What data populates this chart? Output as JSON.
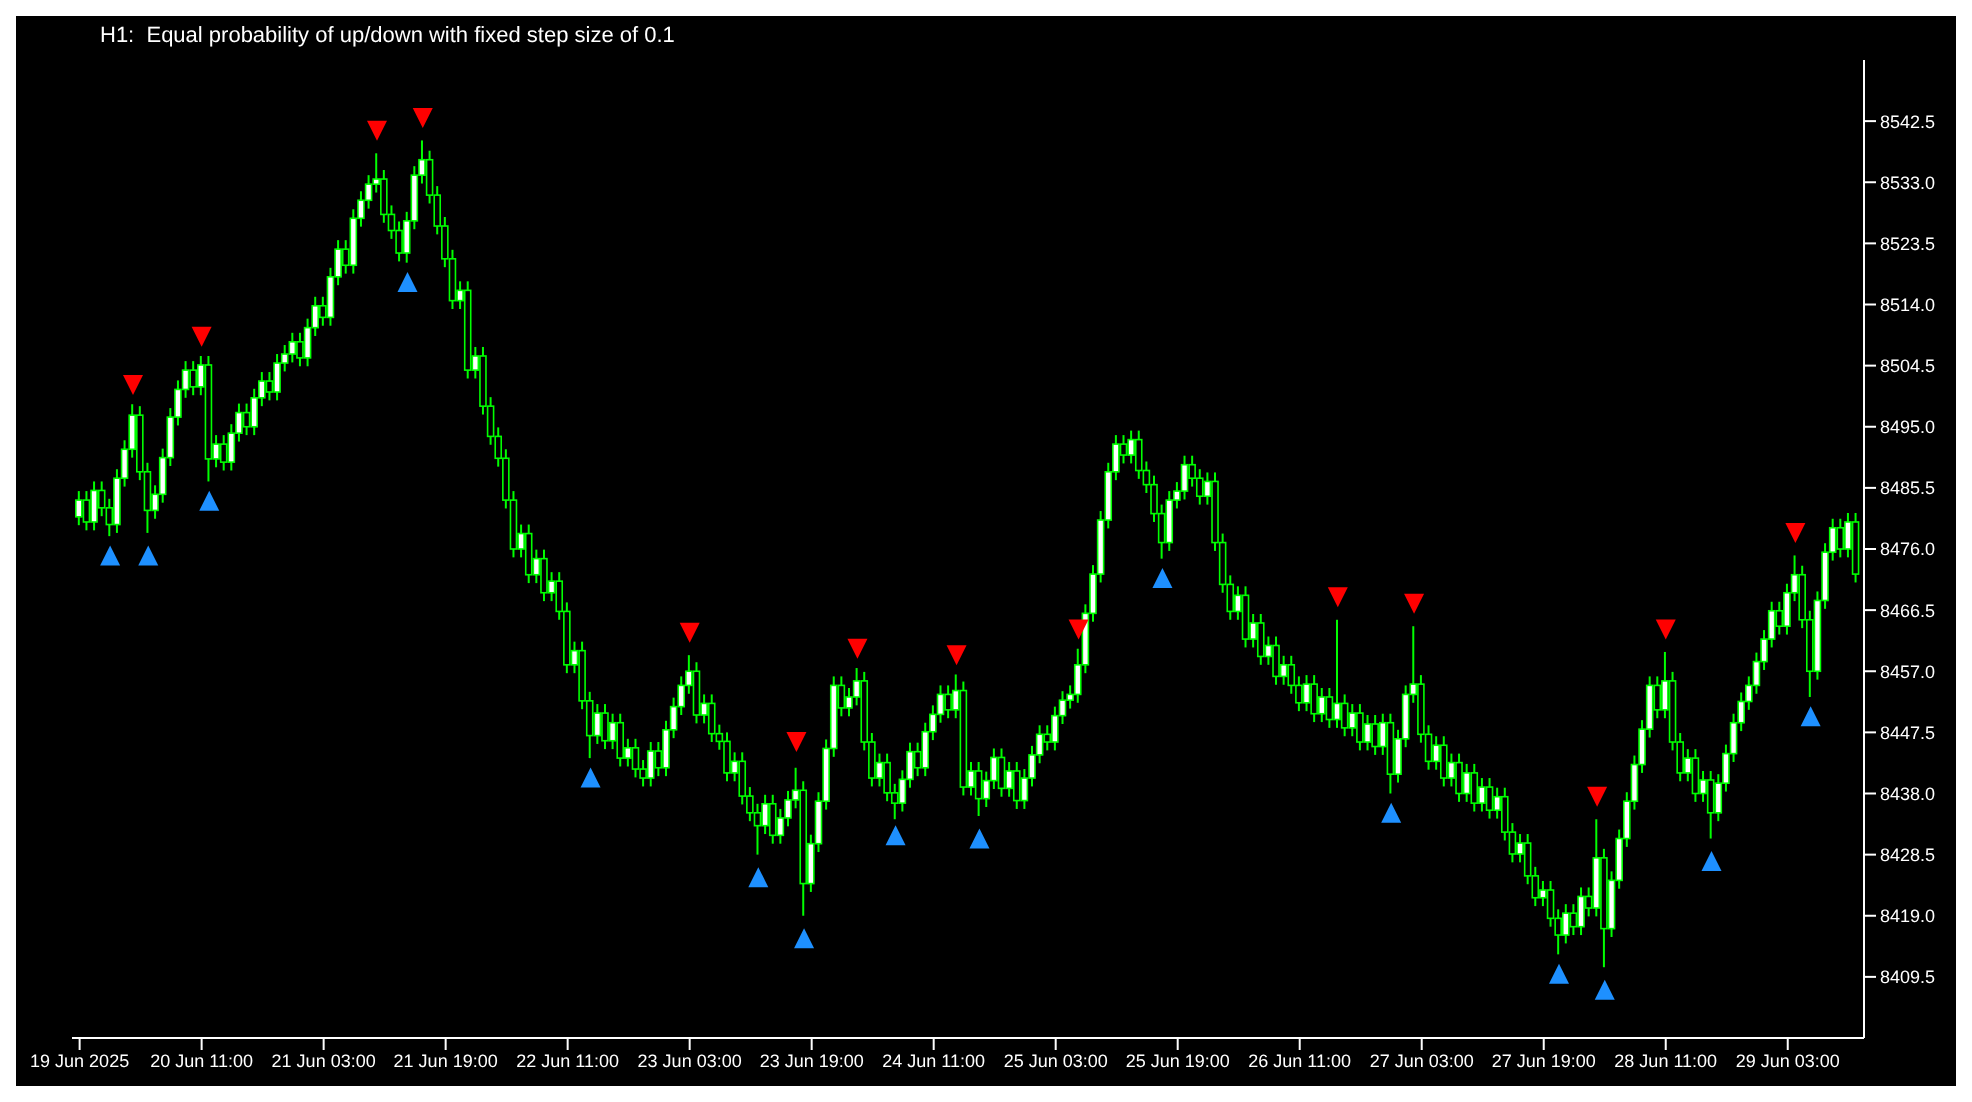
{
  "chart_data": {
    "type": "candlestick",
    "title": "H1:  Equal probability of up/down with fixed step size of 0.1",
    "color": "#00ff00",
    "x": [
      "2025-06-19T19:00",
      "2025-06-19T20:00",
      "2025-06-19T21:00",
      "2025-06-19T22:00",
      "2025-06-19T23:00",
      "2025-06-20T00:00",
      "2025-06-20T01:00",
      "2025-06-20T02:00",
      "2025-06-20T03:00",
      "2025-06-20T04:00",
      "2025-06-20T05:00",
      "2025-06-20T06:00",
      "2025-06-20T07:00",
      "2025-06-20T08:00",
      "2025-06-20T09:00",
      "2025-06-20T10:00",
      "2025-06-20T11:00",
      "2025-06-20T12:00",
      "2025-06-20T13:00",
      "2025-06-20T14:00",
      "2025-06-20T15:00",
      "2025-06-20T16:00",
      "2025-06-20T17:00",
      "2025-06-20T18:00",
      "2025-06-20T19:00",
      "2025-06-20T20:00",
      "2025-06-20T21:00",
      "2025-06-20T22:00",
      "2025-06-20T23:00",
      "2025-06-21T00:00",
      "2025-06-21T01:00",
      "2025-06-21T02:00",
      "2025-06-21T03:00",
      "2025-06-21T04:00",
      "2025-06-21T05:00",
      "2025-06-21T06:00",
      "2025-06-21T07:00",
      "2025-06-21T08:00",
      "2025-06-21T09:00",
      "2025-06-21T10:00",
      "2025-06-21T11:00",
      "2025-06-21T12:00",
      "2025-06-21T13:00",
      "2025-06-21T14:00",
      "2025-06-21T15:00",
      "2025-06-21T16:00",
      "2025-06-21T17:00",
      "2025-06-21T18:00",
      "2025-06-21T19:00",
      "2025-06-21T20:00",
      "2025-06-21T21:00",
      "2025-06-21T22:00",
      "2025-06-21T23:00",
      "2025-06-22T00:00",
      "2025-06-22T01:00",
      "2025-06-22T02:00",
      "2025-06-22T03:00",
      "2025-06-22T04:00",
      "2025-06-22T05:00",
      "2025-06-22T06:00",
      "2025-06-22T07:00",
      "2025-06-22T08:00",
      "2025-06-22T09:00",
      "2025-06-22T10:00",
      "2025-06-22T11:00",
      "2025-06-22T12:00",
      "2025-06-22T13:00",
      "2025-06-22T14:00",
      "2025-06-22T15:00",
      "2025-06-22T16:00",
      "2025-06-22T17:00",
      "2025-06-22T18:00",
      "2025-06-22T19:00",
      "2025-06-22T20:00",
      "2025-06-22T21:00",
      "2025-06-22T22:00",
      "2025-06-22T23:00",
      "2025-06-23T00:00",
      "2025-06-23T01:00",
      "2025-06-23T02:00",
      "2025-06-23T03:00",
      "2025-06-23T04:00",
      "2025-06-23T05:00",
      "2025-06-23T06:00",
      "2025-06-23T07:00",
      "2025-06-23T08:00",
      "2025-06-23T09:00",
      "2025-06-23T10:00",
      "2025-06-23T11:00",
      "2025-06-23T12:00",
      "2025-06-23T13:00",
      "2025-06-23T14:00",
      "2025-06-23T15:00",
      "2025-06-23T16:00",
      "2025-06-23T17:00",
      "2025-06-23T18:00",
      "2025-06-23T19:00",
      "2025-06-23T20:00",
      "2025-06-23T21:00",
      "2025-06-23T22:00",
      "2025-06-23T23:00",
      "2025-06-24T00:00",
      "2025-06-24T01:00",
      "2025-06-24T02:00",
      "2025-06-24T03:00",
      "2025-06-24T04:00",
      "2025-06-24T05:00",
      "2025-06-24T06:00",
      "2025-06-24T07:00",
      "2025-06-24T08:00",
      "2025-06-24T09:00",
      "2025-06-24T10:00",
      "2025-06-24T11:00",
      "2025-06-24T12:00",
      "2025-06-24T13:00",
      "2025-06-24T14:00",
      "2025-06-24T15:00",
      "2025-06-24T16:00",
      "2025-06-24T17:00",
      "2025-06-24T18:00",
      "2025-06-24T19:00",
      "2025-06-24T20:00",
      "2025-06-24T21:00",
      "2025-06-24T22:00",
      "2025-06-24T23:00",
      "2025-06-25T00:00",
      "2025-06-25T01:00",
      "2025-06-25T02:00",
      "2025-06-25T03:00",
      "2025-06-25T04:00",
      "2025-06-25T05:00",
      "2025-06-25T06:00",
      "2025-06-25T07:00",
      "2025-06-25T08:00",
      "2025-06-25T09:00",
      "2025-06-25T10:00",
      "2025-06-25T11:00",
      "2025-06-25T12:00",
      "2025-06-25T13:00",
      "2025-06-25T14:00",
      "2025-06-25T15:00",
      "2025-06-25T16:00",
      "2025-06-25T17:00",
      "2025-06-25T18:00",
      "2025-06-25T19:00",
      "2025-06-25T20:00",
      "2025-06-25T21:00",
      "2025-06-25T22:00",
      "2025-06-25T23:00",
      "2025-06-26T00:00",
      "2025-06-26T01:00",
      "2025-06-26T02:00",
      "2025-06-26T03:00",
      "2025-06-26T04:00",
      "2025-06-26T05:00",
      "2025-06-26T06:00",
      "2025-06-26T07:00",
      "2025-06-26T08:00",
      "2025-06-26T09:00",
      "2025-06-26T10:00",
      "2025-06-26T11:00",
      "2025-06-26T12:00",
      "2025-06-26T13:00",
      "2025-06-26T14:00",
      "2025-06-26T15:00",
      "2025-06-26T16:00",
      "2025-06-26T17:00",
      "2025-06-26T18:00",
      "2025-06-26T19:00",
      "2025-06-26T20:00",
      "2025-06-26T21:00",
      "2025-06-26T22:00",
      "2025-06-26T23:00",
      "2025-06-27T00:00",
      "2025-06-27T01:00",
      "2025-06-27T02:00",
      "2025-06-27T03:00",
      "2025-06-27T04:00",
      "2025-06-27T05:00",
      "2025-06-27T06:00",
      "2025-06-27T07:00",
      "2025-06-27T08:00",
      "2025-06-27T09:00",
      "2025-06-27T10:00",
      "2025-06-27T11:00",
      "2025-06-27T12:00",
      "2025-06-27T13:00",
      "2025-06-27T14:00",
      "2025-06-27T15:00",
      "2025-06-27T16:00",
      "2025-06-27T17:00",
      "2025-06-27T18:00",
      "2025-06-27T19:00",
      "2025-06-27T20:00",
      "2025-06-27T21:00",
      "2025-06-27T22:00",
      "2025-06-27T23:00",
      "2025-06-28T00:00",
      "2025-06-28T01:00",
      "2025-06-28T02:00",
      "2025-06-28T03:00",
      "2025-06-28T04:00",
      "2025-06-28T05:00",
      "2025-06-28T06:00",
      "2025-06-28T07:00",
      "2025-06-28T08:00",
      "2025-06-28T09:00",
      "2025-06-28T10:00",
      "2025-06-28T11:00",
      "2025-06-28T12:00",
      "2025-06-28T13:00",
      "2025-06-28T14:00",
      "2025-06-28T15:00",
      "2025-06-28T16:00",
      "2025-06-28T17:00",
      "2025-06-28T18:00",
      "2025-06-28T19:00",
      "2025-06-28T20:00",
      "2025-06-28T21:00",
      "2025-06-28T22:00",
      "2025-06-28T23:00",
      "2025-06-29T00:00",
      "2025-06-29T01:00",
      "2025-06-29T02:00",
      "2025-06-29T03:00",
      "2025-06-29T04:00",
      "2025-06-29T05:00",
      "2025-06-29T06:00",
      "2025-06-29T07:00",
      "2025-06-29T08:00",
      "2025-06-29T09:00",
      "2025-06-29T10:00",
      "2025-06-29T11:00",
      "2025-06-29T12:00"
    ],
    "ohlc": [
      [
        8481.0,
        8485.0,
        8479.7,
        8483.6
      ],
      [
        8483.6,
        8485.0,
        8478.9,
        8480.2
      ],
      [
        8480.2,
        8486.5,
        8478.9,
        8485.1
      ],
      [
        8485.1,
        8486.5,
        8481.1,
        8482.4
      ],
      [
        8482.4,
        8483.8,
        8478.0,
        8479.8
      ],
      [
        8479.8,
        8488.4,
        8478.5,
        8487.0
      ],
      [
        8487.0,
        8492.9,
        8485.7,
        8491.5
      ],
      [
        8491.5,
        8498.5,
        8490.2,
        8496.8
      ],
      [
        8496.8,
        8498.2,
        8486.7,
        8488.0
      ],
      [
        8488.0,
        8489.4,
        8478.5,
        8482.0
      ],
      [
        8482.0,
        8485.9,
        8480.7,
        8484.5
      ],
      [
        8484.5,
        8491.6,
        8483.2,
        8490.2
      ],
      [
        8490.2,
        8497.9,
        8488.9,
        8496.5
      ],
      [
        8496.5,
        8502.2,
        8495.2,
        8500.8
      ],
      [
        8500.8,
        8505.2,
        8499.5,
        8503.8
      ],
      [
        8503.8,
        8505.2,
        8499.9,
        8501.2
      ],
      [
        8501.2,
        8506.0,
        8499.9,
        8504.6
      ],
      [
        8504.6,
        8506.0,
        8486.5,
        8490.0
      ],
      [
        8490.0,
        8493.7,
        8488.7,
        8492.3
      ],
      [
        8492.3,
        8493.7,
        8488.2,
        8489.5
      ],
      [
        8489.5,
        8495.4,
        8488.2,
        8494.0
      ],
      [
        8494.0,
        8498.6,
        8492.7,
        8497.2
      ],
      [
        8497.2,
        8498.6,
        8493.7,
        8495.0
      ],
      [
        8495.0,
        8500.9,
        8493.7,
        8499.5
      ],
      [
        8499.5,
        8503.5,
        8498.2,
        8502.1
      ],
      [
        8502.1,
        8503.5,
        8499.1,
        8500.4
      ],
      [
        8500.4,
        8506.3,
        8499.1,
        8504.9
      ],
      [
        8504.9,
        8507.7,
        8503.6,
        8506.3
      ],
      [
        8506.3,
        8509.6,
        8505.0,
        8508.2
      ],
      [
        8508.2,
        8509.6,
        8504.4,
        8505.7
      ],
      [
        8505.7,
        8511.8,
        8504.4,
        8510.4
      ],
      [
        8510.4,
        8515.2,
        8509.1,
        8513.8
      ],
      [
        8513.8,
        8515.2,
        8510.7,
        8512.0
      ],
      [
        8512.0,
        8519.7,
        8510.7,
        8518.3
      ],
      [
        8518.3,
        8524.0,
        8517.0,
        8522.6
      ],
      [
        8522.6,
        8524.0,
        8518.8,
        8520.1
      ],
      [
        8520.1,
        8528.8,
        8518.8,
        8527.4
      ],
      [
        8527.4,
        8531.6,
        8526.1,
        8530.2
      ],
      [
        8530.2,
        8534.1,
        8528.9,
        8532.7
      ],
      [
        8532.7,
        8537.5,
        8531.4,
        8533.5
      ],
      [
        8533.5,
        8534.9,
        8526.7,
        8528.0
      ],
      [
        8528.0,
        8529.4,
        8524.2,
        8525.5
      ],
      [
        8525.5,
        8526.9,
        8520.7,
        8522.0
      ],
      [
        8522.0,
        8528.4,
        8520.5,
        8527.0
      ],
      [
        8527.0,
        8535.5,
        8525.7,
        8534.1
      ],
      [
        8534.1,
        8539.5,
        8532.8,
        8536.5
      ],
      [
        8536.5,
        8537.9,
        8529.7,
        8531.0
      ],
      [
        8531.0,
        8532.4,
        8524.9,
        8526.2
      ],
      [
        8526.2,
        8527.6,
        8519.8,
        8521.1
      ],
      [
        8521.1,
        8522.5,
        8513.3,
        8514.6
      ],
      [
        8514.6,
        8517.6,
        8513.3,
        8516.2
      ],
      [
        8516.2,
        8517.6,
        8502.5,
        8503.8
      ],
      [
        8503.8,
        8507.4,
        8502.5,
        8506.0
      ],
      [
        8506.0,
        8507.4,
        8496.9,
        8498.2
      ],
      [
        8498.2,
        8499.6,
        8492.2,
        8493.5
      ],
      [
        8493.5,
        8494.9,
        8488.8,
        8490.1
      ],
      [
        8490.1,
        8491.5,
        8482.3,
        8483.6
      ],
      [
        8483.6,
        8485.0,
        8474.7,
        8476.0
      ],
      [
        8476.0,
        8479.8,
        8474.7,
        8478.4
      ],
      [
        8478.4,
        8479.8,
        8470.7,
        8472.0
      ],
      [
        8472.0,
        8475.9,
        8470.7,
        8474.5
      ],
      [
        8474.5,
        8475.9,
        8467.9,
        8469.2
      ],
      [
        8469.2,
        8472.4,
        8467.9,
        8471.0
      ],
      [
        8471.0,
        8472.4,
        8465.0,
        8466.3
      ],
      [
        8466.3,
        8467.7,
        8456.7,
        8458.0
      ],
      [
        8458.0,
        8461.6,
        8456.7,
        8460.2
      ],
      [
        8460.2,
        8461.6,
        8451.1,
        8452.4
      ],
      [
        8452.4,
        8453.8,
        8443.5,
        8447.0
      ],
      [
        8447.0,
        8451.9,
        8445.7,
        8450.5
      ],
      [
        8450.5,
        8451.9,
        8444.9,
        8446.2
      ],
      [
        8446.2,
        8450.4,
        8444.9,
        8449.0
      ],
      [
        8449.0,
        8450.4,
        8442.2,
        8443.5
      ],
      [
        8443.5,
        8446.5,
        8442.2,
        8445.1
      ],
      [
        8445.1,
        8446.5,
        8440.5,
        8441.8
      ],
      [
        8441.8,
        8443.2,
        8439.1,
        8440.4
      ],
      [
        8440.4,
        8446.0,
        8439.1,
        8444.6
      ],
      [
        8444.6,
        8446.0,
        8440.7,
        8442.0
      ],
      [
        8442.0,
        8449.3,
        8440.7,
        8447.9
      ],
      [
        8447.9,
        8452.9,
        8446.6,
        8451.5
      ],
      [
        8451.5,
        8456.2,
        8450.2,
        8454.8
      ],
      [
        8454.8,
        8459.5,
        8453.5,
        8457.0
      ],
      [
        8457.0,
        8458.4,
        8448.9,
        8450.2
      ],
      [
        8450.2,
        8453.4,
        8448.9,
        8452.0
      ],
      [
        8452.0,
        8453.4,
        8446.0,
        8447.3
      ],
      [
        8447.3,
        8448.7,
        8444.8,
        8446.1
      ],
      [
        8446.1,
        8447.5,
        8439.9,
        8441.2
      ],
      [
        8441.2,
        8444.4,
        8439.9,
        8443.0
      ],
      [
        8443.0,
        8444.4,
        8436.3,
        8437.6
      ],
      [
        8437.6,
        8439.0,
        8433.7,
        8435.0
      ],
      [
        8435.0,
        8436.4,
        8428.5,
        8433.0
      ],
      [
        8433.0,
        8437.8,
        8431.7,
        8436.4
      ],
      [
        8436.4,
        8437.8,
        8430.2,
        8431.5
      ],
      [
        8431.5,
        8435.6,
        8430.2,
        8434.2
      ],
      [
        8434.2,
        8438.4,
        8432.9,
        8437.0
      ],
      [
        8437.0,
        8442.0,
        8435.7,
        8438.5
      ],
      [
        8438.5,
        8439.9,
        8419.0,
        8424.0
      ],
      [
        8424.0,
        8431.6,
        8422.7,
        8430.2
      ],
      [
        8430.2,
        8438.2,
        8428.9,
        8436.8
      ],
      [
        8436.8,
        8446.4,
        8435.5,
        8445.0
      ],
      [
        8445.0,
        8456.2,
        8443.7,
        8454.8
      ],
      [
        8454.8,
        8456.2,
        8450.0,
        8451.3
      ],
      [
        8451.3,
        8454.4,
        8450.0,
        8453.0
      ],
      [
        8453.0,
        8457.5,
        8451.7,
        8455.5
      ],
      [
        8455.5,
        8456.9,
        8444.7,
        8446.0
      ],
      [
        8446.0,
        8447.4,
        8439.1,
        8440.4
      ],
      [
        8440.4,
        8444.2,
        8439.1,
        8442.8
      ],
      [
        8442.8,
        8444.2,
        8436.8,
        8438.1
      ],
      [
        8438.1,
        8439.5,
        8434.0,
        8436.5
      ],
      [
        8436.5,
        8441.6,
        8435.2,
        8440.2
      ],
      [
        8440.2,
        8445.9,
        8438.9,
        8444.5
      ],
      [
        8444.5,
        8445.9,
        8440.7,
        8442.0
      ],
      [
        8442.0,
        8449.0,
        8440.7,
        8447.6
      ],
      [
        8447.6,
        8451.7,
        8446.3,
        8450.3
      ],
      [
        8450.3,
        8454.8,
        8449.0,
        8453.4
      ],
      [
        8453.4,
        8454.8,
        8449.7,
        8451.0
      ],
      [
        8451.0,
        8456.5,
        8449.7,
        8454.0
      ],
      [
        8454.0,
        8455.4,
        8437.7,
        8439.0
      ],
      [
        8439.0,
        8442.9,
        8437.7,
        8441.5
      ],
      [
        8441.5,
        8442.9,
        8434.5,
        8437.2
      ],
      [
        8437.2,
        8441.4,
        8435.9,
        8440.0
      ],
      [
        8440.0,
        8445.0,
        8438.7,
        8443.6
      ],
      [
        8443.6,
        8445.0,
        8437.5,
        8438.8
      ],
      [
        8438.8,
        8442.9,
        8437.5,
        8441.5
      ],
      [
        8441.5,
        8442.9,
        8435.6,
        8436.9
      ],
      [
        8436.9,
        8441.8,
        8435.6,
        8440.4
      ],
      [
        8440.4,
        8445.4,
        8439.1,
        8444.0
      ],
      [
        8444.0,
        8448.6,
        8442.7,
        8447.2
      ],
      [
        8447.2,
        8448.6,
        8444.7,
        8446.0
      ],
      [
        8446.0,
        8451.5,
        8444.7,
        8450.1
      ],
      [
        8450.1,
        8453.9,
        8448.8,
        8452.5
      ],
      [
        8452.5,
        8454.8,
        8451.2,
        8453.4
      ],
      [
        8453.4,
        8460.5,
        8452.1,
        8458.0
      ],
      [
        8458.0,
        8467.4,
        8456.7,
        8466.0
      ],
      [
        8466.0,
        8473.5,
        8464.7,
        8472.1
      ],
      [
        8472.1,
        8481.9,
        8470.8,
        8480.5
      ],
      [
        8480.5,
        8489.4,
        8479.2,
        8488.0
      ],
      [
        8488.0,
        8493.7,
        8486.7,
        8492.3
      ],
      [
        8492.3,
        8493.7,
        8489.3,
        8490.6
      ],
      [
        8490.6,
        8494.4,
        8489.3,
        8493.0
      ],
      [
        8493.0,
        8494.4,
        8486.9,
        8488.2
      ],
      [
        8488.2,
        8489.6,
        8484.7,
        8486.0
      ],
      [
        8486.0,
        8487.4,
        8480.2,
        8481.5
      ],
      [
        8481.5,
        8482.9,
        8474.5,
        8477.0
      ],
      [
        8477.0,
        8485.0,
        8475.7,
        8483.6
      ],
      [
        8483.6,
        8486.4,
        8482.3,
        8485.0
      ],
      [
        8485.0,
        8490.5,
        8483.7,
        8489.1
      ],
      [
        8489.1,
        8490.5,
        8485.7,
        8487.0
      ],
      [
        8487.0,
        8488.4,
        8482.9,
        8484.2
      ],
      [
        8484.2,
        8487.9,
        8482.9,
        8486.5
      ],
      [
        8486.5,
        8487.9,
        8475.7,
        8477.0
      ],
      [
        8477.0,
        8478.4,
        8469.2,
        8470.5
      ],
      [
        8470.5,
        8471.9,
        8465.0,
        8466.3
      ],
      [
        8466.3,
        8470.2,
        8465.0,
        8468.8
      ],
      [
        8468.8,
        8470.2,
        8460.7,
        8462.0
      ],
      [
        8462.0,
        8465.9,
        8460.7,
        8464.5
      ],
      [
        8464.5,
        8465.9,
        8458.0,
        8459.3
      ],
      [
        8459.3,
        8462.4,
        8458.0,
        8461.0
      ],
      [
        8461.0,
        8462.4,
        8454.9,
        8456.2
      ],
      [
        8456.2,
        8459.4,
        8454.9,
        8458.0
      ],
      [
        8458.0,
        8459.4,
        8453.5,
        8454.8
      ],
      [
        8454.8,
        8456.2,
        8450.8,
        8452.1
      ],
      [
        8452.1,
        8456.4,
        8450.8,
        8455.0
      ],
      [
        8455.0,
        8456.4,
        8449.1,
        8450.4
      ],
      [
        8450.4,
        8454.4,
        8449.1,
        8453.0
      ],
      [
        8453.0,
        8454.4,
        8448.2,
        8449.5
      ],
      [
        8449.5,
        8465.0,
        8448.2,
        8452.0
      ],
      [
        8452.0,
        8453.4,
        8446.9,
        8448.2
      ],
      [
        8448.2,
        8451.9,
        8446.9,
        8450.5
      ],
      [
        8450.5,
        8451.9,
        8444.7,
        8446.0
      ],
      [
        8446.0,
        8450.2,
        8444.7,
        8448.8
      ],
      [
        8448.8,
        8450.2,
        8444.0,
        8445.3
      ],
      [
        8445.3,
        8450.4,
        8444.0,
        8449.0
      ],
      [
        8449.0,
        8450.4,
        8438.0,
        8441.0
      ],
      [
        8441.0,
        8447.9,
        8439.7,
        8446.5
      ],
      [
        8446.5,
        8454.8,
        8445.2,
        8453.4
      ],
      [
        8453.4,
        8464.0,
        8452.1,
        8455.0
      ],
      [
        8455.0,
        8456.4,
        8445.9,
        8447.2
      ],
      [
        8447.2,
        8448.6,
        8441.7,
        8443.0
      ],
      [
        8443.0,
        8446.9,
        8441.7,
        8445.5
      ],
      [
        8445.5,
        8446.9,
        8439.1,
        8440.4
      ],
      [
        8440.4,
        8444.2,
        8439.1,
        8442.8
      ],
      [
        8442.8,
        8444.2,
        8436.7,
        8438.0
      ],
      [
        8438.0,
        8442.6,
        8436.7,
        8441.2
      ],
      [
        8441.2,
        8442.6,
        8435.2,
        8436.5
      ],
      [
        8436.5,
        8440.4,
        8435.2,
        8439.0
      ],
      [
        8439.0,
        8440.4,
        8434.1,
        8435.4
      ],
      [
        8435.4,
        8438.9,
        8434.1,
        8437.5
      ],
      [
        8437.5,
        8438.9,
        8430.7,
        8432.0
      ],
      [
        8432.0,
        8433.4,
        8427.3,
        8428.6
      ],
      [
        8428.6,
        8431.7,
        8427.3,
        8430.3
      ],
      [
        8430.3,
        8431.7,
        8423.9,
        8425.2
      ],
      [
        8425.2,
        8426.6,
        8420.5,
        8421.8
      ],
      [
        8421.8,
        8424.4,
        8420.5,
        8423.0
      ],
      [
        8423.0,
        8424.4,
        8417.3,
        8418.6
      ],
      [
        8418.6,
        8420.0,
        8413.0,
        8416.0
      ],
      [
        8416.0,
        8420.8,
        8414.7,
        8419.4
      ],
      [
        8419.4,
        8420.8,
        8416.0,
        8417.3
      ],
      [
        8417.3,
        8423.4,
        8416.0,
        8422.0
      ],
      [
        8422.0,
        8423.4,
        8418.9,
        8420.2
      ],
      [
        8420.2,
        8434.0,
        8418.9,
        8428.0
      ],
      [
        8428.0,
        8429.4,
        8411.0,
        8417.0
      ],
      [
        8417.0,
        8425.9,
        8415.7,
        8424.5
      ],
      [
        8424.5,
        8432.4,
        8423.2,
        8431.0
      ],
      [
        8431.0,
        8438.2,
        8429.7,
        8436.8
      ],
      [
        8436.8,
        8443.9,
        8435.5,
        8442.5
      ],
      [
        8442.5,
        8449.4,
        8441.2,
        8448.0
      ],
      [
        8448.0,
        8456.2,
        8446.7,
        8454.8
      ],
      [
        8454.8,
        8456.2,
        8449.7,
        8451.0
      ],
      [
        8451.0,
        8460.0,
        8449.7,
        8455.5
      ],
      [
        8455.5,
        8456.9,
        8444.7,
        8446.0
      ],
      [
        8446.0,
        8447.4,
        8439.9,
        8441.2
      ],
      [
        8441.2,
        8444.9,
        8439.9,
        8443.5
      ],
      [
        8443.5,
        8444.9,
        8436.7,
        8438.0
      ],
      [
        8438.0,
        8441.5,
        8436.7,
        8440.1
      ],
      [
        8440.1,
        8441.5,
        8431.0,
        8435.0
      ],
      [
        8435.0,
        8441.0,
        8433.7,
        8439.6
      ],
      [
        8439.6,
        8445.6,
        8438.3,
        8444.2
      ],
      [
        8444.2,
        8450.4,
        8442.9,
        8449.0
      ],
      [
        8449.0,
        8453.7,
        8447.7,
        8452.3
      ],
      [
        8452.3,
        8456.2,
        8451.0,
        8454.8
      ],
      [
        8454.8,
        8459.9,
        8453.5,
        8458.5
      ],
      [
        8458.5,
        8463.4,
        8457.2,
        8462.0
      ],
      [
        8462.0,
        8467.8,
        8460.7,
        8466.4
      ],
      [
        8466.4,
        8467.8,
        8462.7,
        8464.0
      ],
      [
        8464.0,
        8470.6,
        8462.7,
        8469.2
      ],
      [
        8469.2,
        8475.0,
        8467.9,
        8472.0
      ],
      [
        8472.0,
        8473.4,
        8463.7,
        8465.0
      ],
      [
        8465.0,
        8466.4,
        8453.0,
        8457.0
      ],
      [
        8457.0,
        8469.4,
        8455.7,
        8468.0
      ],
      [
        8468.0,
        8476.9,
        8466.7,
        8475.5
      ],
      [
        8475.5,
        8480.7,
        8474.2,
        8479.3
      ],
      [
        8479.3,
        8480.7,
        8474.7,
        8476.0
      ],
      [
        8476.0,
        8481.6,
        8474.7,
        8480.2
      ],
      [
        8480.2,
        8481.6,
        8470.8,
        8472.1
      ]
    ],
    "series": [
      {
        "type": "scatter",
        "color": "#ff0000",
        "marker": "triangle",
        "x": [
          "2025-06-20T02:00",
          "2025-06-20T11:00",
          "2025-06-21T10:00",
          "2025-06-21T16:00",
          "2025-06-23T03:00",
          "2025-06-23T17:00",
          "2025-06-24T01:00",
          "2025-06-24T14:00",
          "2025-06-25T06:00",
          "2025-06-26T16:00",
          "2025-06-27T02:00",
          "2025-06-28T02:00",
          "2025-06-28T11:00",
          "2025-06-29T04:00"
        ],
        "values": [
          8501.5,
          8509.0,
          8541.0,
          8543.0,
          8463.0,
          8446.0,
          8460.5,
          8459.5,
          8463.5,
          8468.5,
          8467.5,
          8437.5,
          8463.5,
          8478.5
        ]
      },
      {
        "type": "scatter",
        "color": "#1e90ff",
        "marker": "triangle",
        "x": [
          "2025-06-19T23:00",
          "2025-06-20T04:00",
          "2025-06-20T12:00",
          "2025-06-21T14:00",
          "2025-06-22T14:00",
          "2025-06-23T12:00",
          "2025-06-23T18:00",
          "2025-06-24T06:00",
          "2025-06-24T17:00",
          "2025-06-25T17:00",
          "2025-06-26T23:00",
          "2025-06-27T21:00",
          "2025-06-28T03:00",
          "2025-06-28T17:00",
          "2025-06-29T06:00"
        ],
        "values": [
          8475.0,
          8475.0,
          8483.5,
          8517.5,
          8440.5,
          8425.0,
          8415.5,
          8431.5,
          8431.0,
          8471.5,
          8435.0,
          8410.0,
          8407.5,
          8427.5,
          8450.0
        ]
      }
    ],
    "xlim": [
      "2025-06-19T18:00",
      "2025-06-29T13:00"
    ],
    "xticks": [
      {
        "value": "2025-06-19T19:00",
        "label": "19 Jun 2025"
      },
      {
        "value": "2025-06-20T11:00",
        "label": "20 Jun 11:00"
      },
      {
        "value": "2025-06-21T03:00",
        "label": "21 Jun 03:00"
      },
      {
        "value": "2025-06-21T19:00",
        "label": "21 Jun 19:00"
      },
      {
        "value": "2025-06-22T11:00",
        "label": "22 Jun 11:00"
      },
      {
        "value": "2025-06-23T03:00",
        "label": "23 Jun 03:00"
      },
      {
        "value": "2025-06-23T19:00",
        "label": "23 Jun 19:00"
      },
      {
        "value": "2025-06-24T11:00",
        "label": "24 Jun 11:00"
      },
      {
        "value": "2025-06-25T03:00",
        "label": "25 Jun 03:00"
      },
      {
        "value": "2025-06-25T19:00",
        "label": "25 Jun 19:00"
      },
      {
        "value": "2025-06-26T11:00",
        "label": "26 Jun 11:00"
      },
      {
        "value": "2025-06-27T03:00",
        "label": "27 Jun 03:00"
      },
      {
        "value": "2025-06-27T19:00",
        "label": "27 Jun 19:00"
      },
      {
        "value": "2025-06-28T11:00",
        "label": "28 Jun 11:00"
      },
      {
        "value": "2025-06-29T03:00",
        "label": "29 Jun 03:00"
      }
    ],
    "ylim": [
      8400,
      8552
    ],
    "yticks": [
      {
        "value": 8409.5,
        "label": "8409.5"
      },
      {
        "value": 8419,
        "label": "8419.0"
      },
      {
        "value": 8428.5,
        "label": "8428.5"
      },
      {
        "value": 8438,
        "label": "8438.0"
      },
      {
        "value": 8447.5,
        "label": "8447.5"
      },
      {
        "value": 8457,
        "label": "8457.0"
      },
      {
        "value": 8466.5,
        "label": "8466.5"
      },
      {
        "value": 8476,
        "label": "8476.0"
      },
      {
        "value": 8485.5,
        "label": "8485.5"
      },
      {
        "value": 8495,
        "label": "8495.0"
      },
      {
        "value": 8504.5,
        "label": "8504.5"
      },
      {
        "value": 8514,
        "label": "8514.0"
      },
      {
        "value": 8523.5,
        "label": "8523.5"
      },
      {
        "value": 8533,
        "label": "8533.0"
      },
      {
        "value": 8542.5,
        "label": "8542.5"
      }
    ]
  }
}
